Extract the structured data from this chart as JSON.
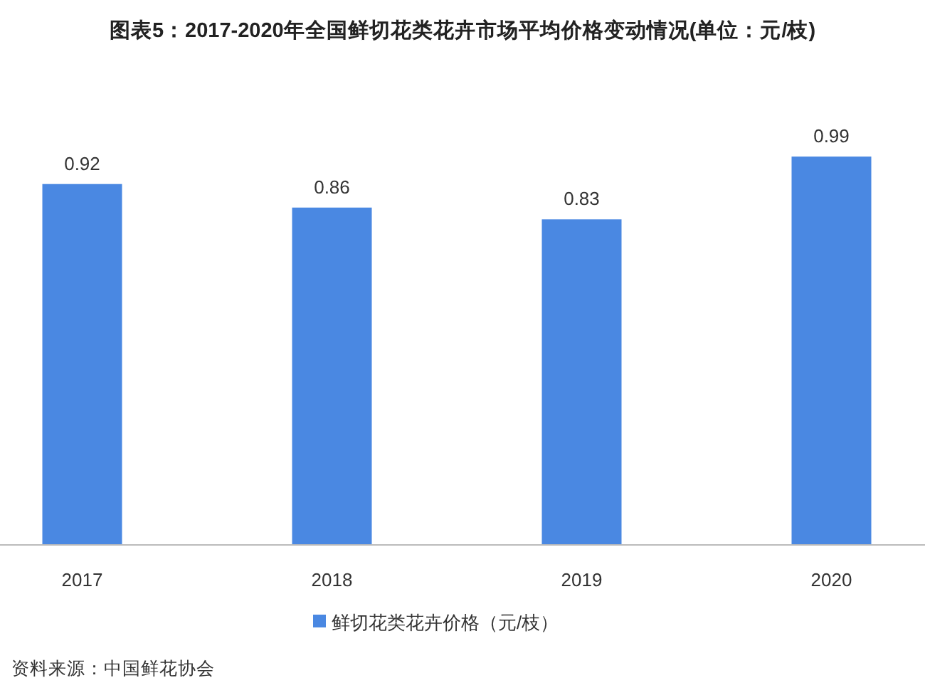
{
  "chart_data": {
    "type": "bar",
    "title": "图表5：2017-2020年全国鲜切花类花卉市场平均价格变动情况(单位：元/枝)",
    "categories": [
      "2017",
      "2018",
      "2019",
      "2020"
    ],
    "series": [
      {
        "name": "鲜切花类花卉价格（元/枝）",
        "color": "#4a88e2",
        "values": [
          0.92,
          0.86,
          0.83,
          0.99
        ]
      }
    ],
    "data_labels": true,
    "legend": "bottom",
    "tick_labels": "x",
    "annotations": [
      "资料来源：中国鲜花协会"
    ]
  }
}
